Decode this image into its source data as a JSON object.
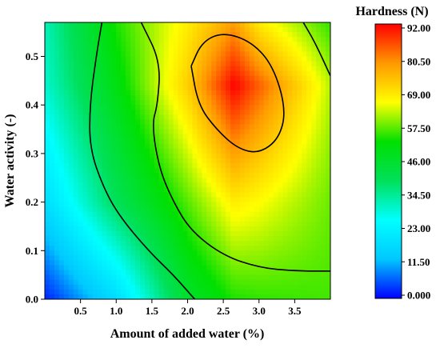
{
  "chart_data": {
    "type": "heatmap",
    "subtype": "contour",
    "xlabel": "Amount of added water (%)",
    "ylabel": "Water activity (-)",
    "xlim": [
      0.0,
      4.0
    ],
    "ylim": [
      0.0,
      0.57
    ],
    "x_ticks": [
      0.5,
      1.0,
      1.5,
      2.0,
      2.5,
      3.0,
      3.5
    ],
    "x_tick_labels": [
      "0.5",
      "1.0",
      "1.5",
      "2.0",
      "2.5",
      "3.0",
      "3.5"
    ],
    "y_ticks": [
      0.0,
      0.1,
      0.2,
      0.3,
      0.4,
      0.5
    ],
    "y_tick_labels": [
      "0.0",
      "0.1",
      "0.2",
      "0.3",
      "0.4",
      "0.5"
    ],
    "colorbar": {
      "title": "Hardness (N)",
      "range": [
        0.0,
        92.0
      ],
      "ticks": [
        92.0,
        80.5,
        69.0,
        57.5,
        46.0,
        34.5,
        23.0,
        11.5,
        0.0
      ],
      "tick_labels": [
        "92.00",
        "80.50",
        "69.00",
        "57.50",
        "46.00",
        "34.50",
        "23.00",
        "11.50",
        "0.000"
      ],
      "colors": [
        "#0000ff",
        "#00c8ff",
        "#00ffff",
        "#00e05a",
        "#00e000",
        "#ffff00",
        "#ff9900",
        "#ff0000"
      ]
    },
    "z_samples": {
      "x": [
        0.0,
        1.0,
        2.0,
        2.65,
        3.0,
        4.0
      ],
      "y": [
        0.0,
        0.2,
        0.44,
        0.57
      ],
      "z": [
        [
          2,
          18,
          46,
          54,
          55,
          56
        ],
        [
          18,
          40,
          57,
          68,
          66,
          58
        ],
        [
          30,
          50,
          72,
          92,
          84,
          62
        ],
        [
          32,
          54,
          68,
          78,
          68,
          55
        ]
      ]
    },
    "contour_levels": [
      46.0,
      57.5,
      80.5
    ],
    "contours": [
      {
        "level": 80.5,
        "points": [
          [
            2.05,
            0.48
          ],
          [
            2.2,
            0.53
          ],
          [
            2.5,
            0.55
          ],
          [
            2.9,
            0.53
          ],
          [
            3.2,
            0.48
          ],
          [
            3.38,
            0.39
          ],
          [
            3.28,
            0.33
          ],
          [
            3.0,
            0.3
          ],
          [
            2.7,
            0.31
          ],
          [
            2.4,
            0.35
          ],
          [
            2.15,
            0.4
          ],
          [
            2.05,
            0.48
          ]
        ]
      },
      {
        "level": 57.5,
        "points": [
          [
            1.35,
            0.57
          ],
          [
            1.62,
            0.49
          ],
          [
            1.58,
            0.4
          ],
          [
            1.5,
            0.36
          ],
          [
            1.6,
            0.27
          ],
          [
            1.8,
            0.2
          ],
          [
            2.05,
            0.14
          ],
          [
            2.5,
            0.09
          ],
          [
            3.0,
            0.065
          ],
          [
            3.5,
            0.058
          ],
          [
            4.0,
            0.058
          ]
        ]
      },
      {
        "level": 57.5,
        "points": [
          [
            3.62,
            0.57
          ],
          [
            3.78,
            0.53
          ],
          [
            4.0,
            0.46
          ]
        ]
      },
      {
        "level": 46.0,
        "points": [
          [
            0.8,
            0.57
          ],
          [
            0.72,
            0.5
          ],
          [
            0.63,
            0.4
          ],
          [
            0.63,
            0.31
          ],
          [
            0.82,
            0.23
          ],
          [
            1.05,
            0.17
          ],
          [
            1.45,
            0.1
          ],
          [
            1.8,
            0.05
          ],
          [
            2.1,
            0.0
          ]
        ]
      }
    ]
  }
}
